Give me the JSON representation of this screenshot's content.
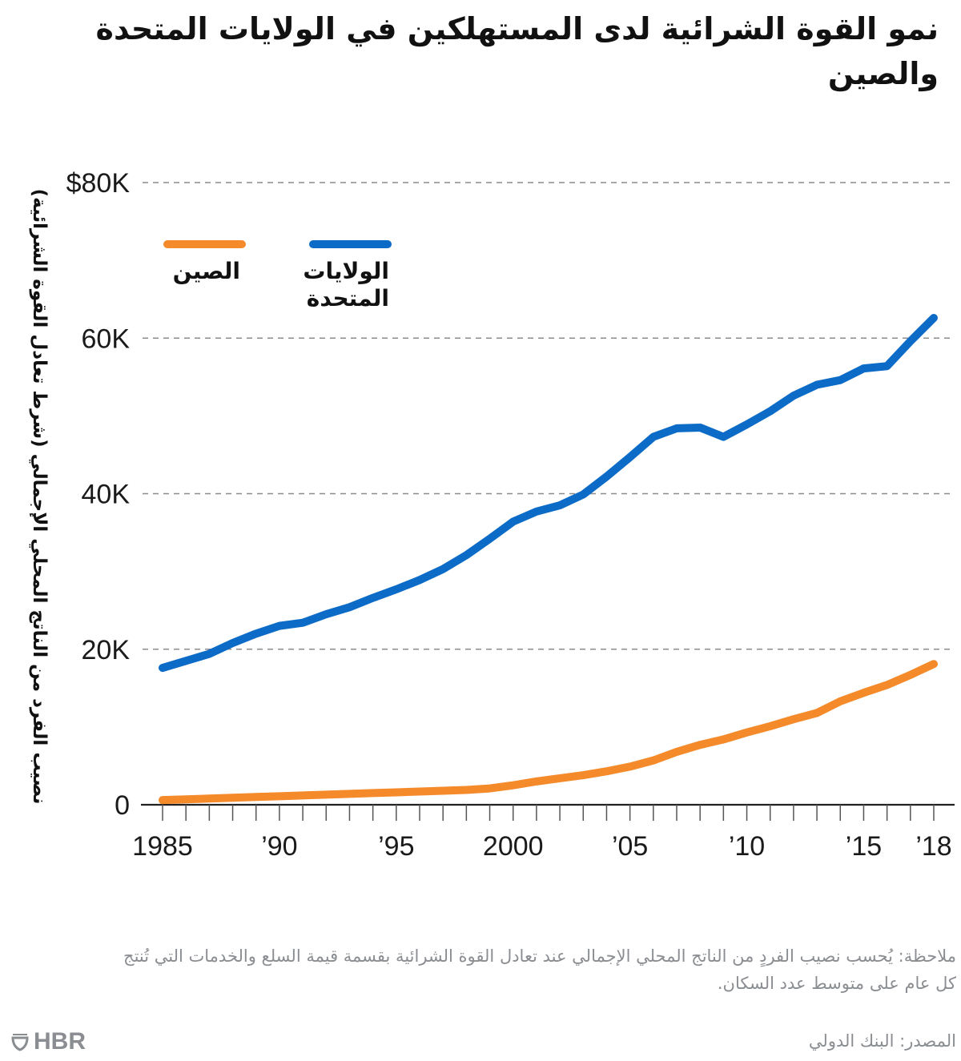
{
  "title": "نمو القوة الشرائية لدى المستهلكين في الولايات المتحدة والصين",
  "note": "ملاحظة: يُحسب نصيب الفردٍ من الناتج المحلي الإجمالي عند تعادل القوة الشرائية بقسمة قيمة السلع والخدمات التي تُنتج كل عام على متوسط عدد السكان.",
  "source": "المصدر: البنك الدولي",
  "brand": "HBR",
  "brand_icon": "shield-icon",
  "colors": {
    "usa": "#0B6BC7",
    "china": "#F58A2A",
    "grid": "#8c8c8c",
    "axis": "#222222"
  },
  "chart_data": {
    "type": "line",
    "title": "نمو القوة الشرائية لدى المستهلكين في الولايات المتحدة والصين",
    "xlabel": "",
    "ylabel": "نصيب الفرد من الناتج المحلي الإجمالي (شرط تعادل القوة الشرائية)",
    "units": "USD thousands",
    "ylim": [
      0,
      80
    ],
    "xlim": [
      1985,
      2018
    ],
    "grid": true,
    "legend_position": "top-left",
    "y_ticks": [
      {
        "value": 0,
        "label": "0"
      },
      {
        "value": 20,
        "label": "20K"
      },
      {
        "value": 40,
        "label": "40K"
      },
      {
        "value": 60,
        "label": "60K"
      },
      {
        "value": 80,
        "label": "$80K"
      }
    ],
    "x_ticks": [
      {
        "value": 1985,
        "label": "1985"
      },
      {
        "value": 1990,
        "label": "’90"
      },
      {
        "value": 1995,
        "label": "’95"
      },
      {
        "value": 2000,
        "label": "2000"
      },
      {
        "value": 2005,
        "label": "’05"
      },
      {
        "value": 2010,
        "label": "’10"
      },
      {
        "value": 2015,
        "label": "’15"
      },
      {
        "value": 2018,
        "label": "’18"
      }
    ],
    "x": [
      1985,
      1986,
      1987,
      1988,
      1989,
      1990,
      1991,
      1992,
      1993,
      1994,
      1995,
      1996,
      1997,
      1998,
      1999,
      2000,
      2001,
      2002,
      2003,
      2004,
      2005,
      2006,
      2007,
      2008,
      2009,
      2010,
      2011,
      2012,
      2013,
      2014,
      2015,
      2016,
      2017,
      2018
    ],
    "series": [
      {
        "name": "الولايات المتحدة",
        "key": "usa",
        "values": [
          17.6,
          18.5,
          19.4,
          20.8,
          22.0,
          23.0,
          23.4,
          24.5,
          25.4,
          26.6,
          27.7,
          28.9,
          30.3,
          32.1,
          34.2,
          36.4,
          37.7,
          38.5,
          39.9,
          42.2,
          44.7,
          47.3,
          48.4,
          48.5,
          47.3,
          48.9,
          50.6,
          52.6,
          54.0,
          54.6,
          56.1,
          56.4,
          59.6,
          62.6
        ]
      },
      {
        "name": "الصين",
        "key": "china",
        "values": [
          0.6,
          0.7,
          0.8,
          0.9,
          1.0,
          1.1,
          1.2,
          1.3,
          1.4,
          1.5,
          1.6,
          1.7,
          1.8,
          1.9,
          2.1,
          2.5,
          3.0,
          3.4,
          3.8,
          4.3,
          4.9,
          5.7,
          6.8,
          7.7,
          8.4,
          9.3,
          10.1,
          11.0,
          11.8,
          13.3,
          14.4,
          15.4,
          16.7,
          18.1
        ]
      }
    ]
  }
}
